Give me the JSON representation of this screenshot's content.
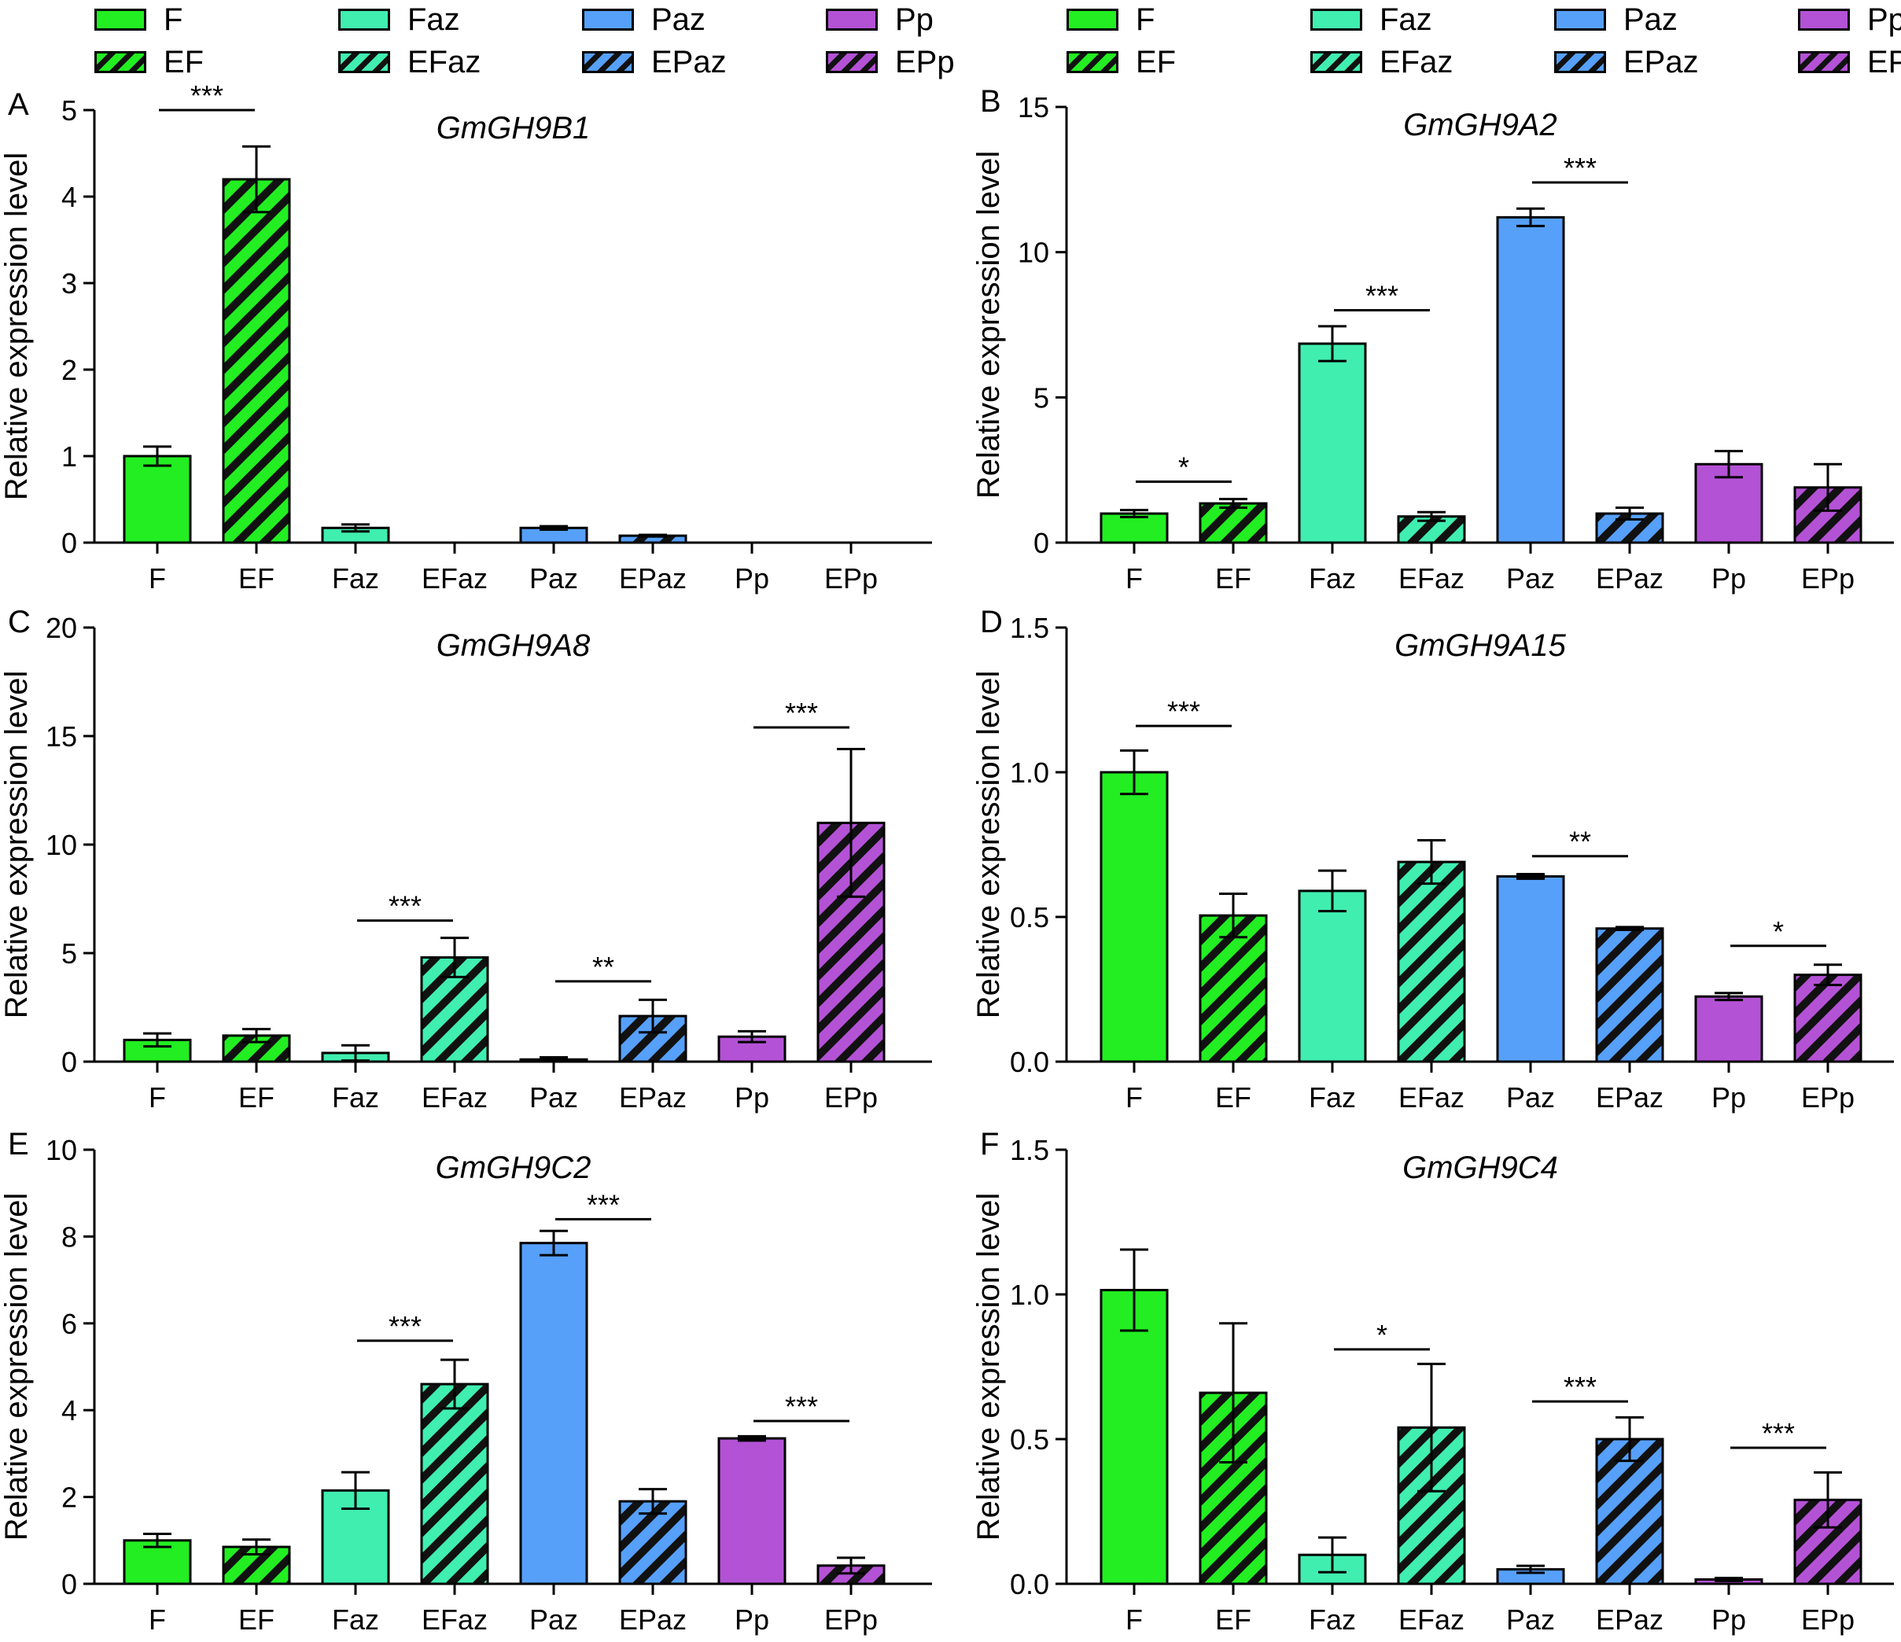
{
  "legend": {
    "items": [
      {
        "label": "F",
        "color": "#22ee22",
        "hatched": false
      },
      {
        "label": "Faz",
        "color": "#40eeb0",
        "hatched": false
      },
      {
        "label": "Paz",
        "color": "#56a0fa",
        "hatched": false
      },
      {
        "label": "Pp",
        "color": "#b452d6",
        "hatched": false
      },
      {
        "label": "EF",
        "color": "#22ee22",
        "hatched": true
      },
      {
        "label": "EFaz",
        "color": "#40eeb0",
        "hatched": true
      },
      {
        "label": "EPaz",
        "color": "#56a0fa",
        "hatched": true
      },
      {
        "label": "EPp",
        "color": "#b452d6",
        "hatched": true
      }
    ]
  },
  "chart_data": [
    {
      "type": "bar",
      "panel": "A",
      "title": "GmGH9B1",
      "ylabel": "Relative expression level",
      "categories": [
        "F",
        "EF",
        "Faz",
        "EFaz",
        "Paz",
        "EPaz",
        "Pp",
        "EPp"
      ],
      "values": [
        1.0,
        4.2,
        0.17,
        0.0,
        0.17,
        0.08,
        0.0,
        0.0
      ],
      "errors": [
        0.11,
        0.38,
        0.04,
        0.0,
        0.02,
        0.01,
        0.0,
        0.0
      ],
      "ylim": [
        0,
        5
      ],
      "yticks": [
        "0",
        "1",
        "2",
        "3",
        "4",
        "5"
      ],
      "significance": [
        {
          "from": 0,
          "to": 1,
          "label": "***",
          "level": 5.0
        }
      ]
    },
    {
      "type": "bar",
      "panel": "B",
      "title": "GmGH9A2",
      "ylabel": "Relative expression level",
      "categories": [
        "F",
        "EF",
        "Faz",
        "EFaz",
        "Paz",
        "EPaz",
        "Pp",
        "EPp"
      ],
      "values": [
        1.0,
        1.35,
        6.85,
        0.9,
        11.2,
        1.0,
        2.7,
        1.9
      ],
      "errors": [
        0.12,
        0.15,
        0.6,
        0.15,
        0.3,
        0.2,
        0.45,
        0.8
      ],
      "ylim": [
        0,
        15
      ],
      "yticks": [
        "0",
        "5",
        "10",
        "15"
      ],
      "significance": [
        {
          "from": 0,
          "to": 1,
          "label": "*",
          "level": 2.1
        },
        {
          "from": 2,
          "to": 3,
          "label": "***",
          "level": 8.0
        },
        {
          "from": 4,
          "to": 5,
          "label": "***",
          "level": 12.4
        }
      ]
    },
    {
      "type": "bar",
      "panel": "C",
      "title": "GmGH9A8",
      "ylabel": "Relative expression level",
      "categories": [
        "F",
        "EF",
        "Faz",
        "EFaz",
        "Paz",
        "EPaz",
        "Pp",
        "EPp"
      ],
      "values": [
        1.0,
        1.2,
        0.4,
        4.8,
        0.1,
        2.1,
        1.15,
        11.0
      ],
      "errors": [
        0.3,
        0.3,
        0.35,
        0.9,
        0.1,
        0.75,
        0.25,
        3.4
      ],
      "ylim": [
        0,
        20
      ],
      "yticks": [
        "0",
        "5",
        "10",
        "15",
        "20"
      ],
      "significance": [
        {
          "from": 2,
          "to": 3,
          "label": "***",
          "level": 6.5
        },
        {
          "from": 4,
          "to": 5,
          "label": "**",
          "level": 3.7
        },
        {
          "from": 6,
          "to": 7,
          "label": "***",
          "level": 15.4
        }
      ]
    },
    {
      "type": "bar",
      "panel": "D",
      "title": "GmGH9A15",
      "ylabel": "Relative expression level",
      "categories": [
        "F",
        "EF",
        "Faz",
        "EFaz",
        "Paz",
        "EPaz",
        "Pp",
        "EPp"
      ],
      "values": [
        1.0,
        0.505,
        0.59,
        0.69,
        0.64,
        0.46,
        0.225,
        0.3
      ],
      "errors": [
        0.075,
        0.075,
        0.07,
        0.075,
        0.008,
        0.005,
        0.012,
        0.035
      ],
      "ylim": [
        0,
        1.5
      ],
      "yticks": [
        "0.0",
        "0.5",
        "1.0",
        "1.5"
      ],
      "significance": [
        {
          "from": 0,
          "to": 1,
          "label": "***",
          "level": 1.16
        },
        {
          "from": 4,
          "to": 5,
          "label": "**",
          "level": 0.71
        },
        {
          "from": 6,
          "to": 7,
          "label": "*",
          "level": 0.4
        }
      ]
    },
    {
      "type": "bar",
      "panel": "E",
      "title": "GmGH9C2",
      "ylabel": "Relative expression level",
      "categories": [
        "F",
        "EF",
        "Faz",
        "EFaz",
        "Paz",
        "EPaz",
        "Pp",
        "EPp"
      ],
      "values": [
        1.0,
        0.85,
        2.15,
        4.6,
        7.85,
        1.9,
        3.35,
        0.42
      ],
      "errors": [
        0.15,
        0.17,
        0.42,
        0.56,
        0.28,
        0.28,
        0.05,
        0.18
      ],
      "ylim": [
        0,
        10
      ],
      "yticks": [
        "0",
        "2",
        "4",
        "6",
        "8",
        "10"
      ],
      "significance": [
        {
          "from": 2,
          "to": 3,
          "label": "***",
          "level": 5.6
        },
        {
          "from": 4,
          "to": 5,
          "label": "***",
          "level": 8.4
        },
        {
          "from": 6,
          "to": 7,
          "label": "***",
          "level": 3.75
        }
      ]
    },
    {
      "type": "bar",
      "panel": "F",
      "title": "GmGH9C4",
      "ylabel": "Relative expression level",
      "categories": [
        "F",
        "EF",
        "Faz",
        "EFaz",
        "Paz",
        "EPaz",
        "Pp",
        "EPp"
      ],
      "values": [
        1.015,
        0.66,
        0.1,
        0.54,
        0.05,
        0.5,
        0.015,
        0.29
      ],
      "errors": [
        0.14,
        0.24,
        0.06,
        0.22,
        0.012,
        0.075,
        0.005,
        0.095
      ],
      "ylim": [
        0,
        1.5
      ],
      "yticks": [
        "0.0",
        "0.5",
        "1.0",
        "1.5"
      ],
      "significance": [
        {
          "from": 2,
          "to": 3,
          "label": "*",
          "level": 0.81
        },
        {
          "from": 4,
          "to": 5,
          "label": "***",
          "level": 0.63
        },
        {
          "from": 6,
          "to": 7,
          "label": "***",
          "level": 0.47
        }
      ]
    }
  ]
}
